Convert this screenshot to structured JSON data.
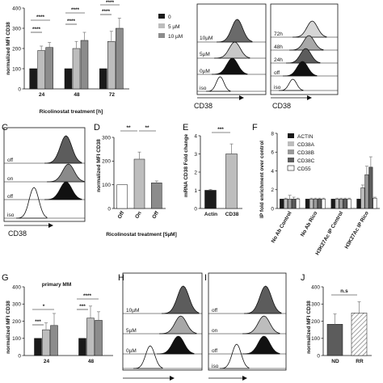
{
  "colors": {
    "black": "#1a1a1a",
    "dark": "#5c5c5c",
    "mid": "#8c8c8c",
    "light": "#bdbdbd",
    "white": "#ffffff"
  },
  "panels": {
    "A": {
      "ylabel": "normalized MFI CD38",
      "xlabel": "Ricolinostat treatment [h]",
      "legend": [
        "0",
        "5 µM",
        "10 µM"
      ],
      "stars": [
        "****",
        "****",
        "****",
        "****",
        "****",
        "****"
      ]
    },
    "B1": {
      "labels": [
        "10µM",
        "5µM",
        "0µM",
        "iso"
      ],
      "axis": "CD38"
    },
    "B2": {
      "labels": [
        "72h",
        "48h",
        "24h",
        "off",
        "iso"
      ],
      "axis": "CD38"
    },
    "C": {
      "letter": "C",
      "labels": [
        "off",
        "on",
        "off",
        "iso"
      ],
      "axis": "CD38"
    },
    "D": {
      "letter": "D",
      "ylabel": "normalized MFI CD38",
      "xlabel": "Ricolinostat treatment [5µM]",
      "stars": [
        "**",
        "**"
      ]
    },
    "E": {
      "letter": "E",
      "ylabel": "mRNA CD38 Fold change",
      "stars": [
        "***"
      ]
    },
    "F": {
      "letter": "F",
      "ylabel": "IP fold enrichment over control",
      "legend": [
        "ACTIN",
        "CD38A",
        "CD38B",
        "CD38C",
        "CD55"
      ]
    },
    "G": {
      "letter": "G",
      "title": "primary MM",
      "ylabel": "normalized MFI CD38",
      "stars": [
        "***",
        "*",
        "***",
        "****"
      ]
    },
    "H": {
      "letter": "H",
      "labels": [
        "10µM",
        "5µM",
        "0µM"
      ]
    },
    "I": {
      "letter": "I",
      "labels": [
        "off",
        "on",
        "off",
        "iso"
      ]
    },
    "J": {
      "letter": "J",
      "ylabel": "normalized MFI CD38",
      "stars": [
        "n.s"
      ]
    }
  },
  "chart_data": [
    {
      "type": "bar",
      "id": "A",
      "categories": [
        "24",
        "48",
        "72"
      ],
      "series": [
        {
          "name": "0",
          "values": [
            100,
            100,
            100
          ],
          "errors": [
            0,
            0,
            0
          ]
        },
        {
          "name": "5 µM",
          "values": [
            190,
            200,
            235
          ],
          "errors": [
            22,
            35,
            50
          ]
        },
        {
          "name": "10 µM",
          "values": [
            205,
            240,
            300
          ],
          "errors": [
            25,
            40,
            50
          ]
        }
      ],
      "xlabel": "Ricolinostat treatment [h]",
      "ylabel": "normalized MFI CD38",
      "ylim": [
        0,
        400
      ],
      "yticks": [
        0,
        100,
        200,
        300,
        400
      ]
    },
    {
      "type": "bar",
      "id": "D",
      "categories": [
        "Off",
        "On",
        "Off"
      ],
      "values": [
        100,
        208,
        108
      ],
      "errors": [
        0,
        30,
        8
      ],
      "xlabel": "Ricolinostat treatment [5µM]",
      "ylabel": "normalized MFI CD38",
      "ylim": [
        0,
        300
      ],
      "yticks": [
        0,
        100,
        200,
        300
      ]
    },
    {
      "type": "bar",
      "id": "E",
      "categories": [
        "Actin",
        "CD38"
      ],
      "values": [
        1.0,
        3.0
      ],
      "errors": [
        0.05,
        0.55
      ],
      "ylabel": "mRNA CD38 Fold change",
      "ylim": [
        0,
        4
      ],
      "yticks": [
        0,
        1,
        2,
        3,
        4
      ]
    },
    {
      "type": "bar",
      "id": "F",
      "categories": [
        "No Ab Control",
        "No Ab Rico",
        "H3K27Ac IP Control",
        "H3K27Ac IP Rico"
      ],
      "series": [
        {
          "name": "ACTIN",
          "values": [
            1,
            1,
            1,
            1
          ],
          "errors": [
            0,
            0,
            0,
            0
          ]
        },
        {
          "name": "CD38A",
          "values": [
            1,
            1,
            1,
            2.2
          ],
          "errors": [
            0.1,
            0.1,
            0.1,
            0.3
          ]
        },
        {
          "name": "CD38B",
          "values": [
            1,
            1,
            1,
            3.6
          ],
          "errors": [
            0.4,
            0.1,
            0.1,
            0.9
          ]
        },
        {
          "name": "CD38C",
          "values": [
            1,
            1,
            1,
            4.4
          ],
          "errors": [
            0.2,
            0.1,
            0.1,
            1.1
          ]
        },
        {
          "name": "CD55",
          "values": [
            1,
            1,
            1,
            1.1
          ],
          "errors": [
            0.1,
            0.1,
            0.1,
            0.1
          ]
        }
      ],
      "ylabel": "IP fold enrichment over control",
      "ylim": [
        0,
        8
      ],
      "yticks": [
        0,
        2,
        4,
        6,
        8
      ]
    },
    {
      "type": "bar",
      "id": "G",
      "categories": [
        "24",
        "48"
      ],
      "series": [
        {
          "name": "0",
          "values": [
            100,
            100
          ],
          "errors": [
            0,
            0
          ]
        },
        {
          "name": "5 µM",
          "values": [
            150,
            218
          ],
          "errors": [
            40,
            70
          ]
        },
        {
          "name": "10 µM",
          "values": [
            175,
            205
          ],
          "errors": [
            70,
            50
          ]
        }
      ],
      "ylabel": "normalized MFI CD38",
      "ylim": [
        0,
        400
      ],
      "yticks": [
        0,
        100,
        200,
        300,
        400
      ]
    },
    {
      "type": "bar",
      "id": "J",
      "categories": [
        "ND",
        "RR"
      ],
      "values": [
        182,
        248
      ],
      "errors": [
        60,
        65
      ],
      "ylabel": "normalized MFI CD38",
      "ylim": [
        0,
        400
      ],
      "yticks": [
        0,
        100,
        200,
        300,
        400
      ]
    }
  ]
}
